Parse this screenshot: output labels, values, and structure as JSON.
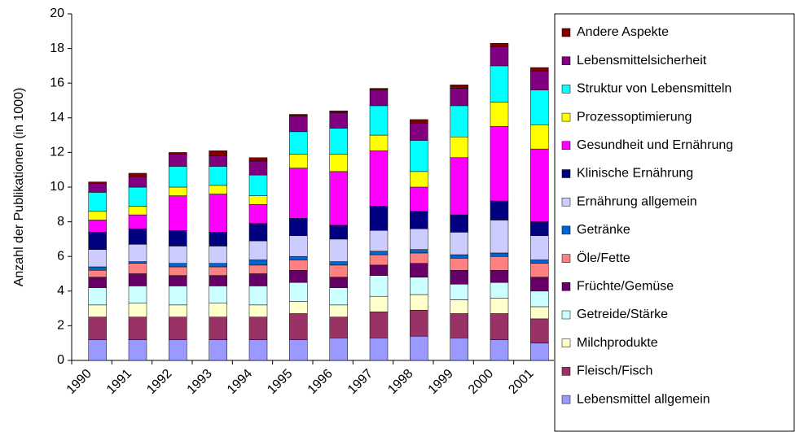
{
  "chart_data": {
    "type": "stacked_bar",
    "ylabel": "Anzahl der Publikationen  (in 1000)",
    "categories": [
      "1990",
      "1991",
      "1992",
      "1993",
      "1994",
      "1995",
      "1996",
      "1997",
      "1998",
      "1999",
      "2000",
      "2001"
    ],
    "ylim": [
      0,
      20
    ],
    "yticks": [
      0,
      2,
      4,
      6,
      8,
      10,
      12,
      14,
      16,
      18,
      20
    ],
    "legend": "right",
    "series": [
      {
        "name": "Lebensmittel allgemein",
        "color": "#9999ff",
        "values": [
          1.2,
          1.2,
          1.2,
          1.2,
          1.2,
          1.2,
          1.3,
          1.3,
          1.4,
          1.3,
          1.2,
          1.0
        ]
      },
      {
        "name": "Fleisch/Fisch",
        "color": "#993366",
        "values": [
          1.3,
          1.3,
          1.3,
          1.3,
          1.3,
          1.5,
          1.2,
          1.5,
          1.5,
          1.4,
          1.5,
          1.4
        ]
      },
      {
        "name": "Milchprodukte",
        "color": "#ffffcc",
        "values": [
          0.7,
          0.8,
          0.7,
          0.8,
          0.7,
          0.7,
          0.7,
          0.9,
          0.9,
          0.8,
          0.9,
          0.7
        ]
      },
      {
        "name": "Getreide/Stärke",
        "color": "#ccffff",
        "values": [
          1.0,
          1.0,
          1.1,
          1.0,
          1.1,
          1.1,
          1.0,
          1.2,
          1.0,
          0.9,
          0.9,
          0.9
        ]
      },
      {
        "name": "Früchte/Gemüse",
        "color": "#660066",
        "values": [
          0.6,
          0.7,
          0.6,
          0.6,
          0.7,
          0.7,
          0.6,
          0.6,
          0.8,
          0.8,
          0.7,
          0.8
        ]
      },
      {
        "name": "Öle/Fette",
        "color": "#ff8080",
        "values": [
          0.4,
          0.6,
          0.5,
          0.5,
          0.5,
          0.6,
          0.7,
          0.6,
          0.6,
          0.7,
          0.8,
          0.8
        ]
      },
      {
        "name": "Getränke",
        "color": "#0066cc",
        "values": [
          0.2,
          0.1,
          0.2,
          0.2,
          0.3,
          0.2,
          0.2,
          0.2,
          0.2,
          0.2,
          0.2,
          0.2
        ]
      },
      {
        "name": "Ernährung allgemein",
        "color": "#ccccff",
        "values": [
          1.0,
          1.0,
          1.0,
          1.0,
          1.1,
          1.2,
          1.3,
          1.2,
          1.2,
          1.3,
          1.9,
          1.4
        ]
      },
      {
        "name": "Klinische Ernährung",
        "color": "#000080",
        "values": [
          1.0,
          0.9,
          0.9,
          0.8,
          1.0,
          1.0,
          0.8,
          1.4,
          1.0,
          1.0,
          1.1,
          0.8
        ]
      },
      {
        "name": "Gesundheit und Ernährung",
        "color": "#ff00ff",
        "values": [
          0.7,
          0.8,
          2.0,
          2.2,
          1.1,
          2.9,
          3.1,
          3.2,
          1.4,
          3.3,
          4.3,
          4.2
        ]
      },
      {
        "name": "Prozessoptimierung",
        "color": "#ffff00",
        "values": [
          0.5,
          0.5,
          0.5,
          0.5,
          0.5,
          0.8,
          1.0,
          0.9,
          0.9,
          1.2,
          1.4,
          1.4
        ]
      },
      {
        "name": "Struktur von Lebensmitteln",
        "color": "#00ffff",
        "values": [
          1.1,
          1.1,
          1.2,
          1.1,
          1.2,
          1.3,
          1.5,
          1.7,
          1.8,
          1.8,
          2.1,
          2.0
        ]
      },
      {
        "name": "Lebensmittelsicherheit",
        "color": "#800080",
        "values": [
          0.5,
          0.6,
          0.7,
          0.6,
          0.8,
          0.9,
          0.9,
          0.9,
          1.0,
          1.0,
          1.1,
          1.1
        ]
      },
      {
        "name": "Andere Aspekte",
        "color": "#800000",
        "values": [
          0.1,
          0.2,
          0.1,
          0.3,
          0.2,
          0.1,
          0.1,
          0.1,
          0.2,
          0.2,
          0.2,
          0.2
        ]
      }
    ]
  }
}
